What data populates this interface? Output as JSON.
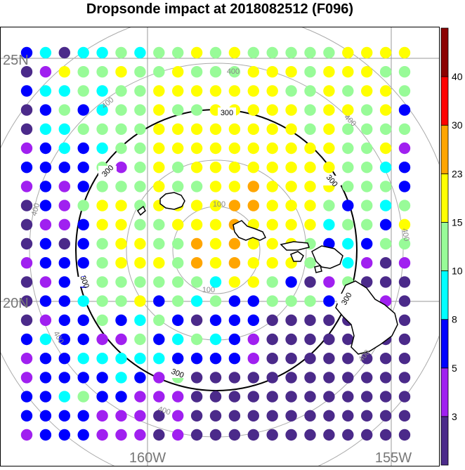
{
  "title": "Dropsonde impact at 2018082512 (F096)",
  "map": {
    "lat_labels": [
      "25N",
      "20N"
    ],
    "lon_labels": [
      "160W",
      "155W"
    ],
    "range_ring_labels": {
      "r100": "100",
      "r300": "300",
      "r400": "400"
    },
    "land_color": "#ffffff",
    "coastline_color": "#000000"
  },
  "colorbar": {
    "tick_labels": [
      "3",
      "5",
      "8",
      "10",
      "15",
      "23",
      "30",
      "40"
    ],
    "colors": [
      "#4b2a8a",
      "#a020f0",
      "#0000ff",
      "#00ffff",
      "#98fb98",
      "#ffff00",
      "#ffa500",
      "#ff0000",
      "#8b0000"
    ]
  },
  "chart_data": {
    "type": "heatmap",
    "title": "Dropsonde impact at 2018082512 (F096)",
    "rows": 21,
    "cols": 21,
    "level_bounds": [
      3,
      5,
      8,
      10,
      15,
      23,
      30,
      40
    ],
    "cell_class_legend": "0: <3, 1: 3-5, 2: 5-8, 3: 8-10, 4: 10-15, 5: 15-23, 6: 23-30, 7: 30-40, 8: >40; -1: no dot",
    "cells": [
      "230334344545444445555",
      "015445445444555455544",
      "233434455555554454554",
      "024234454455555455452",
      "033444455555555454444",
      "123234455555555554451",
      "222241454555555554432",
      "121244454455655554442",
      "021455455556655542434",
      "011255445556555534425",
      "020245544656555423244",
      "122245554656555443101",
      "012244444435542014000",
      "022344524342244420010",
      "012242342022200000000",
      "232211423432100000000",
      "122333332222100000000",
      "122223214000000000000",
      "223422111000000000000",
      "222211101000000000000",
      "122211101000000000000"
    ]
  }
}
